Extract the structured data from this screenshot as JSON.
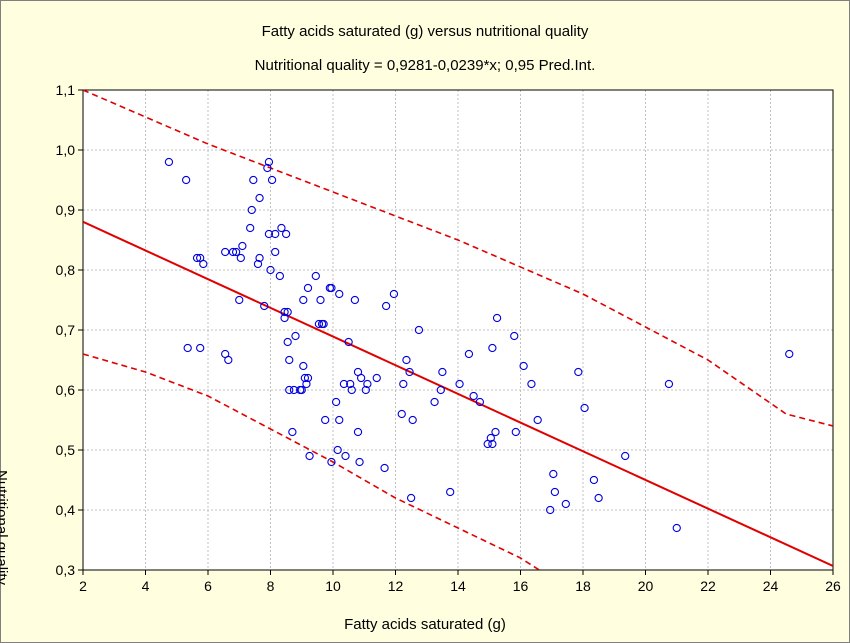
{
  "chart_data": {
    "type": "scatter",
    "title": "Fatty acids saturated (g) versus nutritional quality",
    "subtitle": "Nutritional quality = 0,9281-0,0239*x; 0,95 Pred.Int.",
    "xlabel": "Fatty acids saturated (g)",
    "ylabel": "Nutritional quality",
    "xlim": [
      2,
      26
    ],
    "ylim": [
      0.3,
      1.1
    ],
    "x_ticks": [
      2,
      4,
      6,
      8,
      10,
      12,
      14,
      16,
      18,
      20,
      22,
      24,
      26
    ],
    "x_tick_labels": [
      "2",
      "4",
      "6",
      "8",
      "10",
      "12",
      "14",
      "16",
      "18",
      "20",
      "22",
      "24",
      "26"
    ],
    "y_ticks": [
      0.3,
      0.4,
      0.5,
      0.6,
      0.7,
      0.8,
      0.9,
      1.0,
      1.1
    ],
    "y_tick_labels": [
      "0,3",
      "0,4",
      "0,5",
      "0,6",
      "0,7",
      "0,8",
      "0,9",
      "1,0",
      "1,1"
    ],
    "grid": true,
    "regression": {
      "intercept": 0.9281,
      "slope": -0.0239,
      "color": "#e00000"
    },
    "prediction_interval": {
      "upper": [
        [
          2.0,
          1.1
        ],
        [
          6.0,
          1.01
        ],
        [
          10.0,
          0.93
        ],
        [
          14.0,
          0.85
        ],
        [
          18.0,
          0.76
        ],
        [
          22.0,
          0.65
        ],
        [
          24.5,
          0.56
        ],
        [
          26.0,
          0.54
        ]
      ],
      "lower": [
        [
          2.0,
          0.66
        ],
        [
          4.0,
          0.63
        ],
        [
          6.0,
          0.59
        ],
        [
          10.0,
          0.48
        ],
        [
          12.0,
          0.42
        ],
        [
          16.0,
          0.32
        ],
        [
          16.6,
          0.3
        ]
      ],
      "color": "#e00000"
    },
    "point_color": "#0000e0",
    "points": [
      [
        4.75,
        0.98
      ],
      [
        5.3,
        0.95
      ],
      [
        5.35,
        0.67
      ],
      [
        5.65,
        0.82
      ],
      [
        5.75,
        0.82
      ],
      [
        5.75,
        0.67
      ],
      [
        5.85,
        0.81
      ],
      [
        6.55,
        0.83
      ],
      [
        6.55,
        0.66
      ],
      [
        6.65,
        0.65
      ],
      [
        6.8,
        0.83
      ],
      [
        6.9,
        0.83
      ],
      [
        7.0,
        0.75
      ],
      [
        7.05,
        0.82
      ],
      [
        7.1,
        0.84
      ],
      [
        7.35,
        0.87
      ],
      [
        7.4,
        0.9
      ],
      [
        7.45,
        0.95
      ],
      [
        7.6,
        0.81
      ],
      [
        7.65,
        0.92
      ],
      [
        7.65,
        0.82
      ],
      [
        7.8,
        0.74
      ],
      [
        7.9,
        0.97
      ],
      [
        7.95,
        0.98
      ],
      [
        7.95,
        0.86
      ],
      [
        8.0,
        0.8
      ],
      [
        8.05,
        0.95
      ],
      [
        8.15,
        0.86
      ],
      [
        8.15,
        0.83
      ],
      [
        8.3,
        0.79
      ],
      [
        8.35,
        0.87
      ],
      [
        8.45,
        0.73
      ],
      [
        8.45,
        0.72
      ],
      [
        8.5,
        0.86
      ],
      [
        8.55,
        0.73
      ],
      [
        8.55,
        0.68
      ],
      [
        8.6,
        0.65
      ],
      [
        8.6,
        0.6
      ],
      [
        8.7,
        0.53
      ],
      [
        8.75,
        0.6
      ],
      [
        8.8,
        0.69
      ],
      [
        8.95,
        0.6
      ],
      [
        9.0,
        0.6
      ],
      [
        9.05,
        0.75
      ],
      [
        9.05,
        0.64
      ],
      [
        9.1,
        0.62
      ],
      [
        9.15,
        0.61
      ],
      [
        9.2,
        0.77
      ],
      [
        9.2,
        0.62
      ],
      [
        9.25,
        0.49
      ],
      [
        9.45,
        0.79
      ],
      [
        9.55,
        0.71
      ],
      [
        9.6,
        0.75
      ],
      [
        9.65,
        0.71
      ],
      [
        9.7,
        0.71
      ],
      [
        9.75,
        0.55
      ],
      [
        9.9,
        0.77
      ],
      [
        9.95,
        0.77
      ],
      [
        9.95,
        0.48
      ],
      [
        10.1,
        0.58
      ],
      [
        10.15,
        0.5
      ],
      [
        10.2,
        0.76
      ],
      [
        10.2,
        0.55
      ],
      [
        10.35,
        0.61
      ],
      [
        10.4,
        0.49
      ],
      [
        10.5,
        0.68
      ],
      [
        10.55,
        0.61
      ],
      [
        10.6,
        0.6
      ],
      [
        10.7,
        0.75
      ],
      [
        10.8,
        0.63
      ],
      [
        10.8,
        0.53
      ],
      [
        10.85,
        0.48
      ],
      [
        10.9,
        0.62
      ],
      [
        11.05,
        0.6
      ],
      [
        11.1,
        0.61
      ],
      [
        11.4,
        0.62
      ],
      [
        11.65,
        0.47
      ],
      [
        11.7,
        0.74
      ],
      [
        11.95,
        0.76
      ],
      [
        12.2,
        0.56
      ],
      [
        12.25,
        0.61
      ],
      [
        12.35,
        0.65
      ],
      [
        12.45,
        0.63
      ],
      [
        12.5,
        0.42
      ],
      [
        12.55,
        0.55
      ],
      [
        12.75,
        0.7
      ],
      [
        13.25,
        0.58
      ],
      [
        13.45,
        0.6
      ],
      [
        13.5,
        0.63
      ],
      [
        13.75,
        0.43
      ],
      [
        14.05,
        0.61
      ],
      [
        14.35,
        0.66
      ],
      [
        14.5,
        0.59
      ],
      [
        14.7,
        0.58
      ],
      [
        14.95,
        0.51
      ],
      [
        15.05,
        0.52
      ],
      [
        15.1,
        0.51
      ],
      [
        15.1,
        0.67
      ],
      [
        15.2,
        0.53
      ],
      [
        15.25,
        0.72
      ],
      [
        15.8,
        0.69
      ],
      [
        15.85,
        0.53
      ],
      [
        16.1,
        0.64
      ],
      [
        16.35,
        0.61
      ],
      [
        16.55,
        0.55
      ],
      [
        16.95,
        0.4
      ],
      [
        17.05,
        0.46
      ],
      [
        17.1,
        0.43
      ],
      [
        17.45,
        0.41
      ],
      [
        17.85,
        0.63
      ],
      [
        18.05,
        0.57
      ],
      [
        18.35,
        0.45
      ],
      [
        18.5,
        0.42
      ],
      [
        19.35,
        0.49
      ],
      [
        20.75,
        0.61
      ],
      [
        21.0,
        0.37
      ],
      [
        24.6,
        0.66
      ]
    ]
  }
}
